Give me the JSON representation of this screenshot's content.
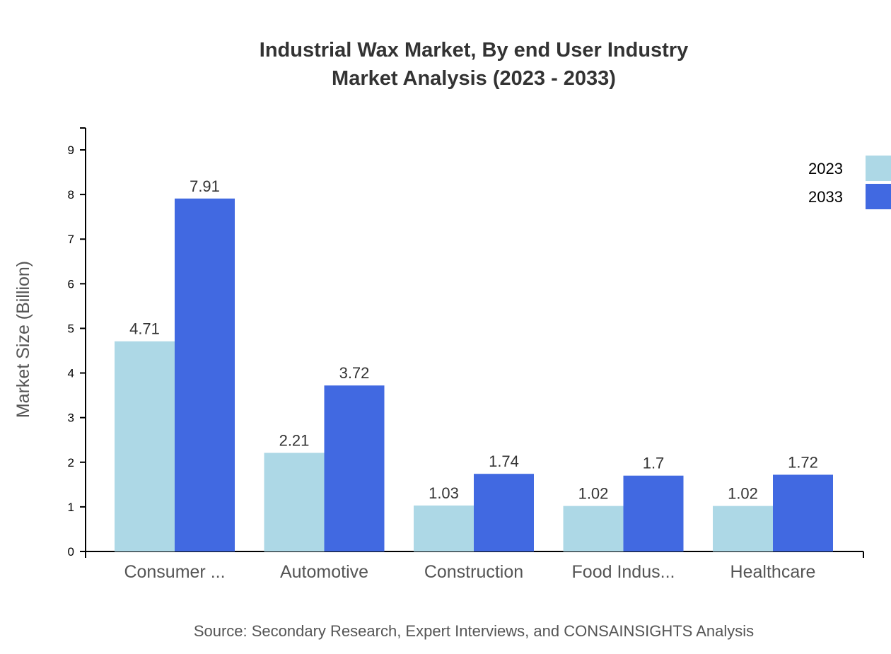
{
  "chart_data": {
    "type": "bar",
    "title": "Industrial Wax Market, By end User Industry",
    "subtitle": "Market Analysis (2023 - 2033)",
    "xlabel": "",
    "ylabel": "Market Size (Billion)",
    "ylim": [
      0,
      9.5
    ],
    "yticks": [
      0,
      1,
      2,
      3,
      4,
      5,
      6,
      7,
      8,
      9
    ],
    "categories": [
      "Consumer ...",
      "Automotive",
      "Construction",
      "Food Indus...",
      "Healthcare"
    ],
    "series": [
      {
        "name": "2023",
        "color": "#ADD8E6",
        "values": [
          4.71,
          2.21,
          1.03,
          1.02,
          1.02
        ]
      },
      {
        "name": "2033",
        "color": "#4169E1",
        "values": [
          7.91,
          3.72,
          1.74,
          1.7,
          1.72
        ]
      }
    ],
    "grid": false,
    "legend": "top-right",
    "source": "Source: Secondary Research, Expert Interviews, and CONSAINSIGHTS Analysis"
  }
}
